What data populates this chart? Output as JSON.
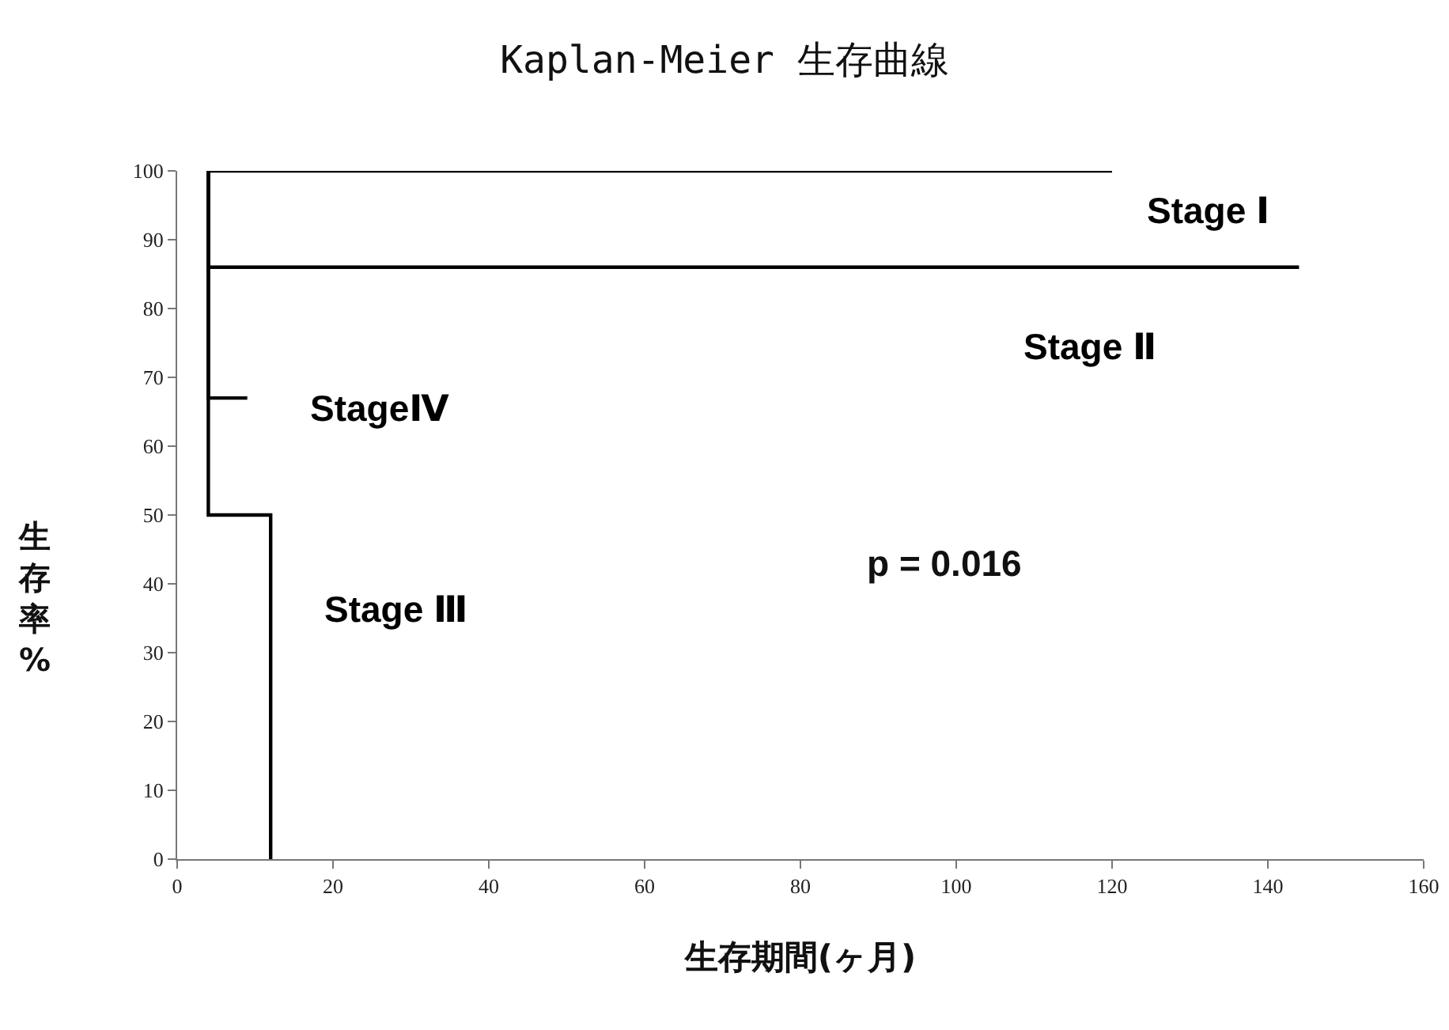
{
  "chart_data": {
    "type": "step",
    "title": "Kaplan-Meier 生存曲線",
    "xlabel": "生存期間(ヶ月)",
    "ylabel": "生存率%",
    "series": [
      {
        "name": "Stage Ⅰ",
        "color": "#000000",
        "x": [
          4,
          120
        ],
        "values": [
          100,
          100
        ]
      },
      {
        "name": "Stage Ⅱ",
        "color": "#000000",
        "x": [
          4,
          4,
          144
        ],
        "values": [
          100,
          86,
          86
        ]
      },
      {
        "name": "Stage Ⅲ",
        "color": "#000000",
        "x": [
          4,
          4,
          12,
          12
        ],
        "values": [
          100,
          50,
          50,
          0
        ]
      },
      {
        "name": "StageⅣ",
        "color": "#000000",
        "x": [
          4,
          4,
          9
        ],
        "values": [
          100,
          67,
          67
        ]
      }
    ],
    "annotations": [
      "p = 0.016"
    ],
    "xlim": [
      0,
      160
    ],
    "xticks": [
      0,
      20,
      40,
      60,
      80,
      100,
      120,
      140,
      160
    ],
    "ylim": [
      0,
      100
    ],
    "yticks": [
      0,
      10,
      20,
      30,
      40,
      50,
      60,
      70,
      80,
      90,
      100
    ],
    "grid": false,
    "legend": false,
    "line_style": "solid",
    "marker": "none"
  }
}
